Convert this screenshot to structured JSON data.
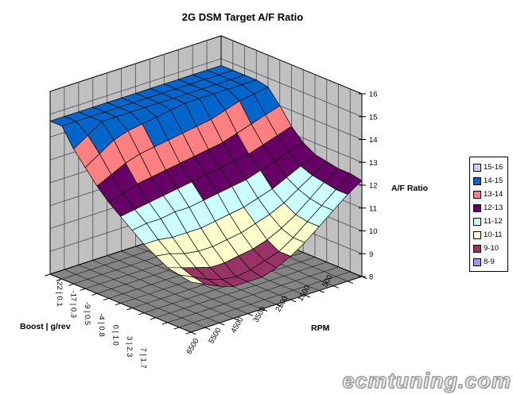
{
  "title": "2G DSM Target A/F Ratio",
  "watermark": "ecmtuning.com",
  "chart_data": {
    "type": "surface",
    "title": "2G DSM Target A/F Ratio",
    "x_axis": {
      "label": "RPM",
      "tick_labels": [
        "6500",
        "5500",
        "4500",
        "3500",
        "2500",
        "1500",
        "500"
      ]
    },
    "y_axis": {
      "label": "Boost | g/rev",
      "tick_labels": [
        "-22 | 0.1",
        "-17 | 0.3",
        "-9 | 0.5",
        "-4 | 0.8",
        "0 | 1.0",
        "3 | 2.3",
        "7 | 1.7"
      ]
    },
    "z_axis": {
      "label": "A/F Ratio",
      "min": 8,
      "max": 16,
      "tick_step": 1
    },
    "legend": {
      "position": "right",
      "entries": [
        {
          "label": "15-16",
          "color": "#CCCCFF"
        },
        {
          "label": "14-15",
          "color": "#0066CC"
        },
        {
          "label": "13-14",
          "color": "#FF8080"
        },
        {
          "label": "12-13",
          "color": "#660066"
        },
        {
          "label": "11-12",
          "color": "#CCFFFF"
        },
        {
          "label": "10-11",
          "color": "#FFFFCC"
        },
        {
          "label": "9-10",
          "color": "#993366"
        },
        {
          "label": "8-9",
          "color": "#9999FF"
        }
      ]
    },
    "band_colors_low_to_high": [
      "#9999FF",
      "#993366",
      "#FFFFCC",
      "#CCFFFF",
      "#660066",
      "#FF8080",
      "#0066CC",
      "#CCCCFF"
    ],
    "colors": {
      "wall": "#C0C0C0",
      "floor": "#848484",
      "wall_grid": "#4d4d4d",
      "floor_grid": "#1a1a1a",
      "mesh_line": "#000000"
    },
    "surface_values_af": {
      "rows": "boost from -22 (back) to 7 (front), 13 rows",
      "cols": "RPM from 6500 (left) to 500 (right), 13 cols",
      "z": [
        [
          14.7,
          14.7,
          14.7,
          14.7,
          14.7,
          14.7,
          14.7,
          14.7,
          14.7,
          14.7,
          14.7,
          14.7,
          14.7
        ],
        [
          14.7,
          14.7,
          14.7,
          14.7,
          14.7,
          14.7,
          14.7,
          14.7,
          14.7,
          14.7,
          14.7,
          14.7,
          14.7
        ],
        [
          13.9,
          14.3,
          14.7,
          14.7,
          14.7,
          14.7,
          14.7,
          14.7,
          14.7,
          14.7,
          14.7,
          14.7,
          14.7
        ],
        [
          13.3,
          13.7,
          14.1,
          14.3,
          14.4,
          14.5,
          14.6,
          14.7,
          14.7,
          14.7,
          14.7,
          14.7,
          14.7
        ],
        [
          12.7,
          13.0,
          13.3,
          13.5,
          13.6,
          13.7,
          13.8,
          13.9,
          14.0,
          14.2,
          14.4,
          14.5,
          14.6
        ],
        [
          12.2,
          12.4,
          12.6,
          12.7,
          12.8,
          12.9,
          13.0,
          13.1,
          13.2,
          13.4,
          13.6,
          13.8,
          14.0
        ],
        [
          11.8,
          11.9,
          12.0,
          12.1,
          12.2,
          12.3,
          12.4,
          12.5,
          12.6,
          12.7,
          12.9,
          13.1,
          13.3
        ],
        [
          11.4,
          11.5,
          11.5,
          11.6,
          11.6,
          11.7,
          11.8,
          11.9,
          12.0,
          12.2,
          12.4,
          12.6,
          12.8
        ],
        [
          11.0,
          11.0,
          10.9,
          10.9,
          10.9,
          11.0,
          11.1,
          11.2,
          11.4,
          11.6,
          11.9,
          12.2,
          12.5
        ],
        [
          10.7,
          10.6,
          10.4,
          10.3,
          10.3,
          10.4,
          10.5,
          10.7,
          10.9,
          11.2,
          11.6,
          12.0,
          12.4
        ],
        [
          10.4,
          10.2,
          10.0,
          9.8,
          9.8,
          9.9,
          10.0,
          10.2,
          10.5,
          10.9,
          11.4,
          11.9,
          12.3
        ],
        [
          10.3,
          10.0,
          9.7,
          9.5,
          9.4,
          9.5,
          9.7,
          9.9,
          10.3,
          10.8,
          11.3,
          11.8,
          12.3
        ],
        [
          10.2,
          9.9,
          9.6,
          9.4,
          9.4,
          9.4,
          9.6,
          9.9,
          10.3,
          10.8,
          11.3,
          11.8,
          12.2
        ]
      ]
    }
  }
}
